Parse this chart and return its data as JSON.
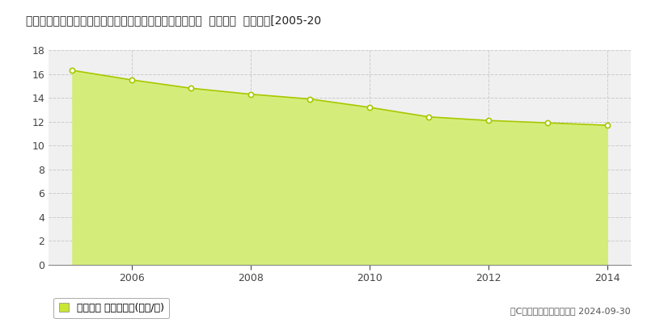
{
  "title": "広島県広島市安佐南区沼田町大字大塚字中垂内６０２番５  基準地価  地価推移[2005-20",
  "years": [
    2005,
    2006,
    2007,
    2008,
    2009,
    2010,
    2011,
    2012,
    2013,
    2014
  ],
  "values": [
    16.3,
    15.5,
    14.8,
    14.3,
    13.9,
    13.2,
    12.4,
    12.1,
    11.9,
    11.7
  ],
  "ylim": [
    0,
    18
  ],
  "yticks": [
    0,
    2,
    4,
    6,
    8,
    10,
    12,
    14,
    16,
    18
  ],
  "xticks": [
    2006,
    2008,
    2010,
    2012,
    2014
  ],
  "fill_color": "#d4ed7a",
  "line_color": "#a8c800",
  "marker_color": "#ffffff",
  "marker_edge_color": "#a8c800",
  "grid_color": "#cccccc",
  "bg_color": "#ffffff",
  "plot_bg_color": "#f0f0f0",
  "legend_label": "基準地価 平均坪単価(万円/坪)",
  "legend_color": "#c8e632",
  "copyright_text": "（C）土地価格ドットコム 2024-09-30",
  "title_fontsize": 10,
  "tick_fontsize": 9,
  "legend_fontsize": 9,
  "copyright_fontsize": 8,
  "xlim_min": 2004.6,
  "xlim_max": 2014.4
}
